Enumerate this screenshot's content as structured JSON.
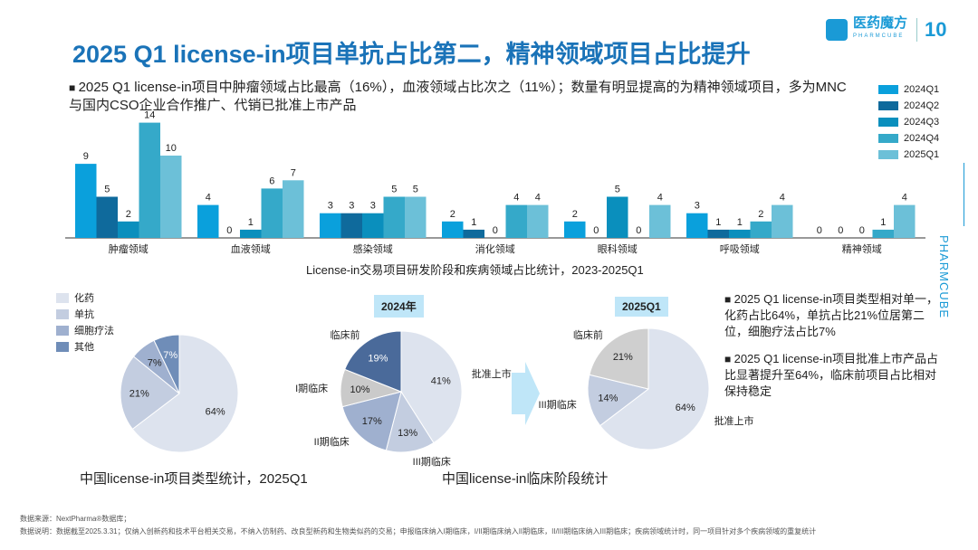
{
  "title": "2025 Q1 license-in项目单抗占比第二，精神领域项目占比提升",
  "logo": {
    "name": "医药魔方",
    "sub": "PHARMCUBE",
    "anniv": "10"
  },
  "intro": "2025 Q1 license-in项目中肿瘤领域占比最高（16%），血液领域占比次之（11%）；数量有明显提高的为精神领域项目，多为MNC与国内CSO企业合作推广、代销已批准上市产品",
  "side_text": "PHARMCUBE",
  "chart_data": [
    {
      "type": "bar",
      "title": "License-in交易项目研发阶段和疾病领域占比统计，2023-2025Q1",
      "categories": [
        "肿瘤领域",
        "血液领域",
        "感染领域",
        "消化领域",
        "眼科领域",
        "呼吸领域",
        "精神领域"
      ],
      "series": [
        {
          "name": "2024Q1",
          "color": "#0aa0dc",
          "values": [
            9,
            4,
            3,
            2,
            2,
            3,
            0
          ]
        },
        {
          "name": "2024Q2",
          "color": "#0f6a9c",
          "values": [
            5,
            0,
            3,
            1,
            0,
            1,
            0
          ]
        },
        {
          "name": "2024Q3",
          "color": "#0a8fbd",
          "values": [
            2,
            1,
            3,
            0,
            5,
            1,
            0
          ]
        },
        {
          "name": "2024Q4",
          "color": "#35a9c9",
          "values": [
            14,
            6,
            5,
            4,
            0,
            2,
            1
          ]
        },
        {
          "name": "2025Q1",
          "color": "#6cc0d8",
          "values": [
            10,
            7,
            5,
            4,
            4,
            4,
            4
          ]
        }
      ],
      "ylim": [
        0,
        14
      ],
      "legend": "top-right"
    },
    {
      "type": "pie",
      "title": "中国license-in项目类型统计，2025Q1",
      "labels": [
        "化药",
        "单抗",
        "细胞疗法",
        "其他"
      ],
      "values": [
        64,
        21,
        7,
        7
      ],
      "value_labels": [
        "64%",
        "21%",
        "7%",
        "7%"
      ],
      "colors": [
        "#dde3ee",
        "#c3cde0",
        "#9fb0cf",
        "#6f8db8"
      ],
      "legend": "top-left"
    },
    {
      "type": "pie",
      "title": "2024年",
      "labels": [
        "批准上市",
        "III期临床",
        "II期临床",
        "I期临床",
        "临床前"
      ],
      "values": [
        41,
        13,
        17,
        10,
        19
      ],
      "value_labels": [
        "41%",
        "13%",
        "17%",
        "10%",
        "19%"
      ],
      "colors": [
        "#dde3ee",
        "#c3cde0",
        "#9fb0cf",
        "#cacaca",
        "#4a6a9a"
      ]
    },
    {
      "type": "pie",
      "title": "2025Q1",
      "labels": [
        "批准上市",
        "III期临床",
        "临床前"
      ],
      "values": [
        64,
        14,
        21
      ],
      "value_labels": [
        "64%",
        "14%",
        "21%"
      ],
      "colors": [
        "#dde3ee",
        "#c3cde0",
        "#cfcfcf"
      ]
    }
  ],
  "stage_caption": "中国license-in临床阶段统计",
  "right_bullets": [
    "2025 Q1 license-in项目类型相对单一，化药占比64%，单抗占比21%位居第二位，细胞疗法占比7%",
    "2025 Q1 license-in项目批准上市产品占比显著提升至64%，临床前项目占比相对保持稳定"
  ],
  "notes": [
    "数据来源：NextPharma®数据库；",
    "数据说明：数据截至2025.3.31；仅纳入创新药和技术平台相关交易，不纳入仿制药、改良型新药和生物类似药的交易；申报临床纳入I期临床，I/II期临床纳入II期临床，II/III期临床纳入III期临床；疾病领域统计时，同一项目针对多个疾病领域的重复统计"
  ]
}
